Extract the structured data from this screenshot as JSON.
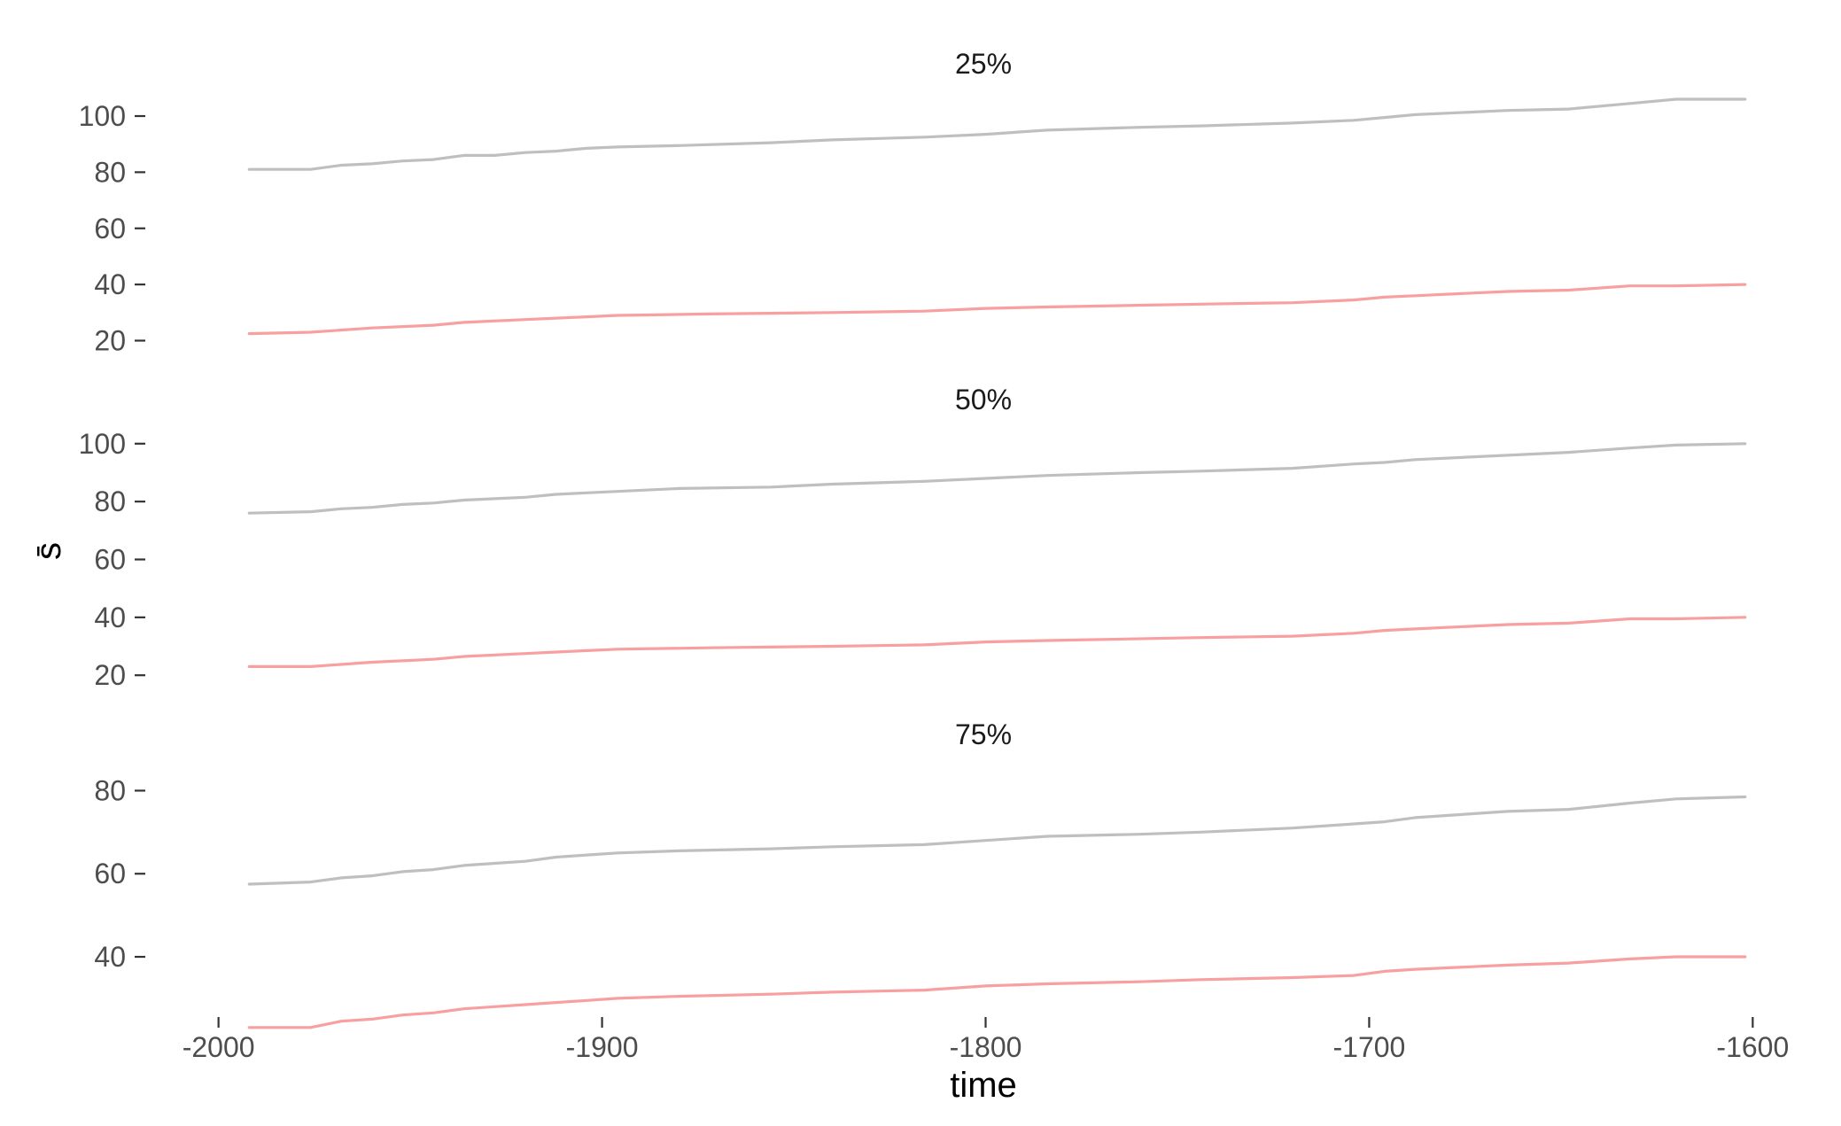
{
  "chart_data": {
    "type": "line",
    "xlabel": "time",
    "ylabel": "s̄",
    "x_ticks": [
      -2000,
      -1900,
      -1800,
      -1700,
      -1600
    ],
    "xlim": [
      -2005,
      -1595
    ],
    "grid": false,
    "legend": "none",
    "colors": {
      "upper": "#bfbfbf",
      "lower": "#f8a0a0"
    },
    "panels": [
      {
        "title": "25%",
        "ylim": [
          17,
          106
        ],
        "y_ticks": [
          20,
          40,
          60,
          80,
          100
        ],
        "series": [
          {
            "color": "#bfbfbf",
            "x": [
              -1992,
              -1976,
              -1968,
              -1960,
              -1952,
              -1944,
              -1936,
              -1928,
              -1920,
              -1912,
              -1904,
              -1896,
              -1880,
              -1856,
              -1840,
              -1816,
              -1800,
              -1784,
              -1760,
              -1744,
              -1720,
              -1704,
              -1696,
              -1688,
              -1664,
              -1648,
              -1632,
              -1620,
              -1602
            ],
            "values": [
              81,
              81,
              82.5,
              83,
              84,
              84.5,
              86,
              86,
              87,
              87.5,
              88.5,
              89,
              89.5,
              90.5,
              91.5,
              92.5,
              93.5,
              95,
              96,
              96.5,
              97.5,
              98.5,
              99.5,
              100.5,
              102,
              102.5,
              104.5,
              106,
              106
            ]
          },
          {
            "color": "#f8a0a0",
            "x": [
              -1992,
              -1976,
              -1960,
              -1944,
              -1936,
              -1920,
              -1904,
              -1896,
              -1872,
              -1840,
              -1816,
              -1800,
              -1784,
              -1744,
              -1720,
              -1704,
              -1696,
              -1688,
              -1664,
              -1648,
              -1632,
              -1620,
              -1602
            ],
            "values": [
              22.5,
              23,
              24.5,
              25.5,
              26.5,
              27.5,
              28.5,
              29,
              29.5,
              30,
              30.5,
              31.5,
              32,
              33,
              33.5,
              34.5,
              35.5,
              36,
              37.5,
              38,
              39.5,
              39.5,
              40
            ]
          }
        ]
      },
      {
        "title": "50%",
        "ylim": [
          17,
          103
        ],
        "y_ticks": [
          20,
          40,
          60,
          80,
          100
        ],
        "series": [
          {
            "color": "#bfbfbf",
            "x": [
              -1992,
              -1976,
              -1968,
              -1960,
              -1952,
              -1944,
              -1936,
              -1928,
              -1920,
              -1912,
              -1904,
              -1896,
              -1880,
              -1856,
              -1840,
              -1816,
              -1800,
              -1784,
              -1760,
              -1744,
              -1720,
              -1704,
              -1696,
              -1688,
              -1664,
              -1648,
              -1632,
              -1620,
              -1602
            ],
            "values": [
              76,
              76.5,
              77.5,
              78,
              79,
              79.5,
              80.5,
              81,
              81.5,
              82.5,
              83,
              83.5,
              84.5,
              85,
              86,
              87,
              88,
              89,
              90,
              90.5,
              91.5,
              93,
              93.5,
              94.5,
              96,
              97,
              98.5,
              99.5,
              100
            ]
          },
          {
            "color": "#f8a0a0",
            "x": [
              -1992,
              -1976,
              -1960,
              -1944,
              -1936,
              -1920,
              -1904,
              -1896,
              -1872,
              -1840,
              -1816,
              -1800,
              -1784,
              -1744,
              -1720,
              -1704,
              -1696,
              -1688,
              -1664,
              -1648,
              -1632,
              -1620,
              -1602
            ],
            "values": [
              23,
              23,
              24.5,
              25.5,
              26.5,
              27.5,
              28.5,
              29,
              29.5,
              30,
              30.5,
              31.5,
              32,
              33,
              33.5,
              34.5,
              35.5,
              36,
              37.5,
              38,
              39.5,
              39.5,
              40
            ]
          }
        ]
      },
      {
        "title": "75%",
        "ylim": [
          27,
          85
        ],
        "y_ticks": [
          40,
          60,
          80
        ],
        "series": [
          {
            "color": "#bfbfbf",
            "x": [
              -1992,
              -1976,
              -1968,
              -1960,
              -1952,
              -1944,
              -1936,
              -1928,
              -1920,
              -1912,
              -1904,
              -1896,
              -1880,
              -1856,
              -1840,
              -1816,
              -1800,
              -1784,
              -1760,
              -1744,
              -1720,
              -1704,
              -1696,
              -1688,
              -1664,
              -1648,
              -1632,
              -1620,
              -1602
            ],
            "values": [
              57.5,
              58,
              59,
              59.5,
              60.5,
              61,
              62,
              62.5,
              63,
              64,
              64.5,
              65,
              65.5,
              66,
              66.5,
              67,
              68,
              69,
              69.5,
              70,
              71,
              72,
              72.5,
              73.5,
              75,
              75.5,
              77,
              78,
              78.5
            ]
          },
          {
            "color": "#f8a0a0",
            "x": [
              -1992,
              -1976,
              -1968,
              -1960,
              -1952,
              -1944,
              -1936,
              -1928,
              -1920,
              -1912,
              -1904,
              -1896,
              -1880,
              -1856,
              -1840,
              -1816,
              -1800,
              -1784,
              -1760,
              -1744,
              -1720,
              -1704,
              -1696,
              -1688,
              -1664,
              -1648,
              -1632,
              -1620,
              -1602
            ],
            "values": [
              23,
              23,
              24.5,
              25,
              26,
              26.5,
              27.5,
              28,
              28.5,
              29,
              29.5,
              30,
              30.5,
              31,
              31.5,
              32,
              33,
              33.5,
              34,
              34.5,
              35,
              35.5,
              36.5,
              37,
              38,
              38.5,
              39.5,
              40,
              40
            ]
          }
        ]
      }
    ]
  }
}
